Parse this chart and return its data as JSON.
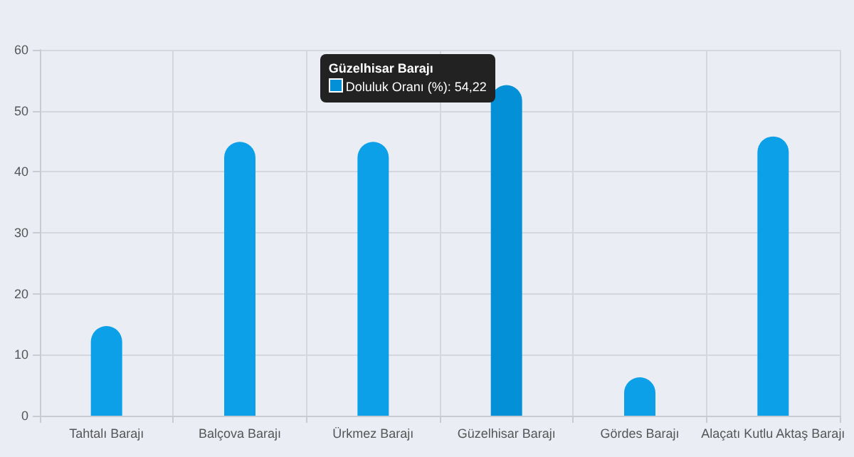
{
  "chart_data": {
    "type": "bar",
    "categories": [
      "Tahtalı Barajı",
      "Balçova Barajı",
      "Ürkmez Barajı",
      "Güzelhisar Barajı",
      "Gördes Barajı",
      "Alaçatı Kutlu Aktaş Barajı"
    ],
    "series": [
      {
        "colors": [
          "#0ba0e8",
          "#0ba0e8",
          "#0ba0e8",
          "#0490d6",
          "#0ba0e8",
          "#0ba0e8"
        ],
        "values": [
          14.7,
          44.9,
          44.9,
          54.22,
          6.3,
          45.8
        ]
      }
    ],
    "annotations": [
      "Güzelhisar Barajı",
      "Doluluk Oranı (%): 54,22"
    ],
    "ylim": [
      0,
      60
    ],
    "yticks": [
      0,
      10,
      20,
      30,
      40,
      50,
      60
    ],
    "grid": true
  }
}
